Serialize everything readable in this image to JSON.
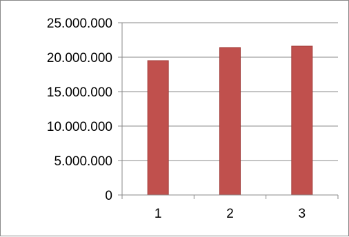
{
  "chart_data": {
    "type": "bar",
    "categories": [
      "1",
      "2",
      "3"
    ],
    "values": [
      19500000,
      21400000,
      21600000
    ],
    "ylim": [
      0,
      25000000
    ],
    "yticks": [
      "0",
      "5.000.000",
      "10.000.000",
      "15.000.000",
      "20.000.000",
      "25.000.000"
    ],
    "grid": true,
    "legend": "none",
    "colors": {
      "bar": "#c0504d",
      "bar_edge": "#a23c39",
      "grid": "#888888",
      "axis": "#888888"
    }
  }
}
